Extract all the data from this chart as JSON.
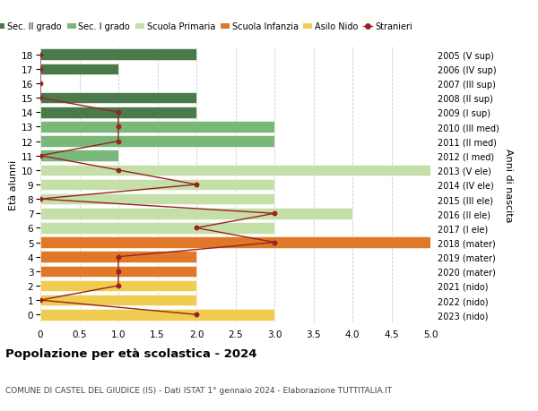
{
  "ages": [
    18,
    17,
    16,
    15,
    14,
    13,
    12,
    11,
    10,
    9,
    8,
    7,
    6,
    5,
    4,
    3,
    2,
    1,
    0
  ],
  "year_labels": [
    "2005 (V sup)",
    "2006 (IV sup)",
    "2007 (III sup)",
    "2008 (II sup)",
    "2009 (I sup)",
    "2010 (III med)",
    "2011 (II med)",
    "2012 (I med)",
    "2013 (V ele)",
    "2014 (IV ele)",
    "2015 (III ele)",
    "2016 (II ele)",
    "2017 (I ele)",
    "2018 (mater)",
    "2019 (mater)",
    "2020 (mater)",
    "2021 (nido)",
    "2022 (nido)",
    "2023 (nido)"
  ],
  "bar_values": [
    2,
    1,
    0,
    2,
    2,
    3,
    3,
    1,
    5,
    3,
    3,
    4,
    3,
    5,
    2,
    2,
    2,
    2,
    3
  ],
  "bar_colors": [
    "#4a7a4a",
    "#4a7a4a",
    "#4a7a4a",
    "#4a7a4a",
    "#4a7a4a",
    "#7ab87a",
    "#7ab87a",
    "#7ab87a",
    "#c5dfa8",
    "#c5dfa8",
    "#c5dfa8",
    "#c5dfa8",
    "#c5dfa8",
    "#e07828",
    "#e07828",
    "#e07828",
    "#f0cc50",
    "#f0cc50",
    "#f0cc50"
  ],
  "stranieri_values": [
    0,
    0,
    0,
    0,
    1,
    1,
    1,
    0,
    1,
    2,
    0,
    3,
    2,
    3,
    1,
    1,
    1,
    0,
    2
  ],
  "stranieri_ages": [
    18,
    17,
    16,
    15,
    14,
    13,
    12,
    11,
    10,
    9,
    8,
    7,
    6,
    5,
    4,
    3,
    2,
    1,
    0
  ],
  "color_sec2": "#4a7a4a",
  "color_sec1": "#7ab87a",
  "color_primaria": "#c5dfa8",
  "color_infanzia": "#e07828",
  "color_nido": "#f0cc50",
  "color_stranieri": "#992222",
  "title": "Popolazione per età scolastica - 2024",
  "subtitle": "COMUNE DI CASTEL DEL GIUDICE (IS) - Dati ISTAT 1° gennaio 2024 - Elaborazione TUTTITALIA.IT",
  "ylabel_left": "Età alunni",
  "ylabel_right": "Anni di nascita",
  "xlim": [
    0,
    5.0
  ],
  "ylim_low": -0.55,
  "ylim_high": 18.55,
  "background_color": "#ffffff",
  "grid_color": "#cccccc",
  "legend_labels": [
    "Sec. II grado",
    "Sec. I grado",
    "Scuola Primaria",
    "Scuola Infanzia",
    "Asilo Nido",
    "Stranieri"
  ]
}
